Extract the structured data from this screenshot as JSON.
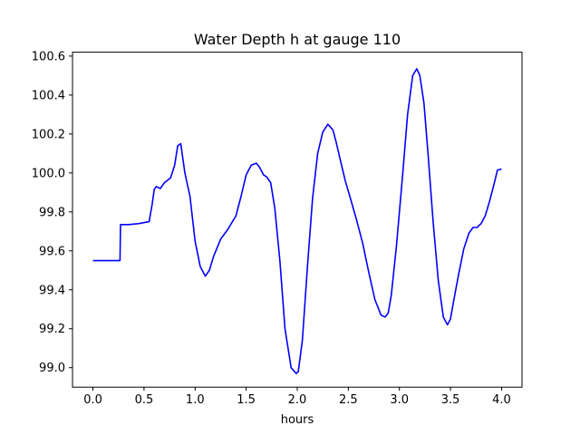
{
  "chart_data": {
    "type": "line",
    "title": "Water Depth h at gauge 110",
    "xlabel": "hours",
    "ylabel": "",
    "xlim": [
      -0.2,
      4.2
    ],
    "ylim": [
      98.9,
      100.62
    ],
    "xticks": [
      0.0,
      0.5,
      1.0,
      1.5,
      2.0,
      2.5,
      3.0,
      3.5,
      4.0
    ],
    "xtick_labels": [
      "0.0",
      "0.5",
      "1.0",
      "1.5",
      "2.0",
      "2.5",
      "3.0",
      "3.5",
      "4.0"
    ],
    "yticks": [
      99.0,
      99.2,
      99.4,
      99.6,
      99.8,
      100.0,
      100.2,
      100.4,
      100.6
    ],
    "ytick_labels": [
      "99.0",
      "99.2",
      "99.4",
      "99.6",
      "99.8",
      "100.0",
      "100.2",
      "100.4",
      "100.6"
    ],
    "grid": false,
    "series": [
      {
        "color": "#0000ff",
        "x": [
          0.0,
          0.1,
          0.2,
          0.265,
          0.27,
          0.35,
          0.45,
          0.55,
          0.58,
          0.6,
          0.62,
          0.66,
          0.7,
          0.76,
          0.8,
          0.83,
          0.86,
          0.9,
          0.95,
          1.0,
          1.05,
          1.1,
          1.14,
          1.18,
          1.25,
          1.32,
          1.4,
          1.45,
          1.5,
          1.55,
          1.6,
          1.63,
          1.67,
          1.7,
          1.74,
          1.78,
          1.83,
          1.88,
          1.94,
          1.99,
          2.01,
          2.05,
          2.1,
          2.15,
          2.2,
          2.25,
          2.3,
          2.35,
          2.38,
          2.42,
          2.47,
          2.52,
          2.58,
          2.64,
          2.7,
          2.76,
          2.82,
          2.86,
          2.89,
          2.92,
          2.97,
          3.03,
          3.08,
          3.13,
          3.17,
          3.2,
          3.24,
          3.28,
          3.33,
          3.38,
          3.43,
          3.47,
          3.5,
          3.53,
          3.58,
          3.63,
          3.68,
          3.72,
          3.76,
          3.8,
          3.84,
          3.88,
          3.92,
          3.96,
          4.0
        ],
        "y": [
          99.55,
          99.55,
          99.55,
          99.55,
          99.735,
          99.735,
          99.74,
          99.75,
          99.84,
          99.915,
          99.93,
          99.92,
          99.95,
          99.975,
          100.04,
          100.14,
          100.15,
          100.0,
          99.88,
          99.65,
          99.52,
          99.47,
          99.5,
          99.57,
          99.66,
          99.71,
          99.78,
          99.88,
          99.99,
          100.04,
          100.05,
          100.03,
          99.99,
          99.98,
          99.95,
          99.82,
          99.55,
          99.2,
          99.0,
          98.97,
          98.98,
          99.14,
          99.52,
          99.87,
          100.1,
          100.21,
          100.25,
          100.22,
          100.16,
          100.07,
          99.96,
          99.87,
          99.76,
          99.64,
          99.49,
          99.35,
          99.27,
          99.26,
          99.28,
          99.37,
          99.62,
          99.98,
          100.3,
          100.5,
          100.535,
          100.5,
          100.36,
          100.1,
          99.75,
          99.45,
          99.26,
          99.22,
          99.25,
          99.34,
          99.48,
          99.61,
          99.69,
          99.72,
          99.72,
          99.74,
          99.78,
          99.85,
          99.93,
          100.015,
          100.02
        ]
      }
    ]
  }
}
